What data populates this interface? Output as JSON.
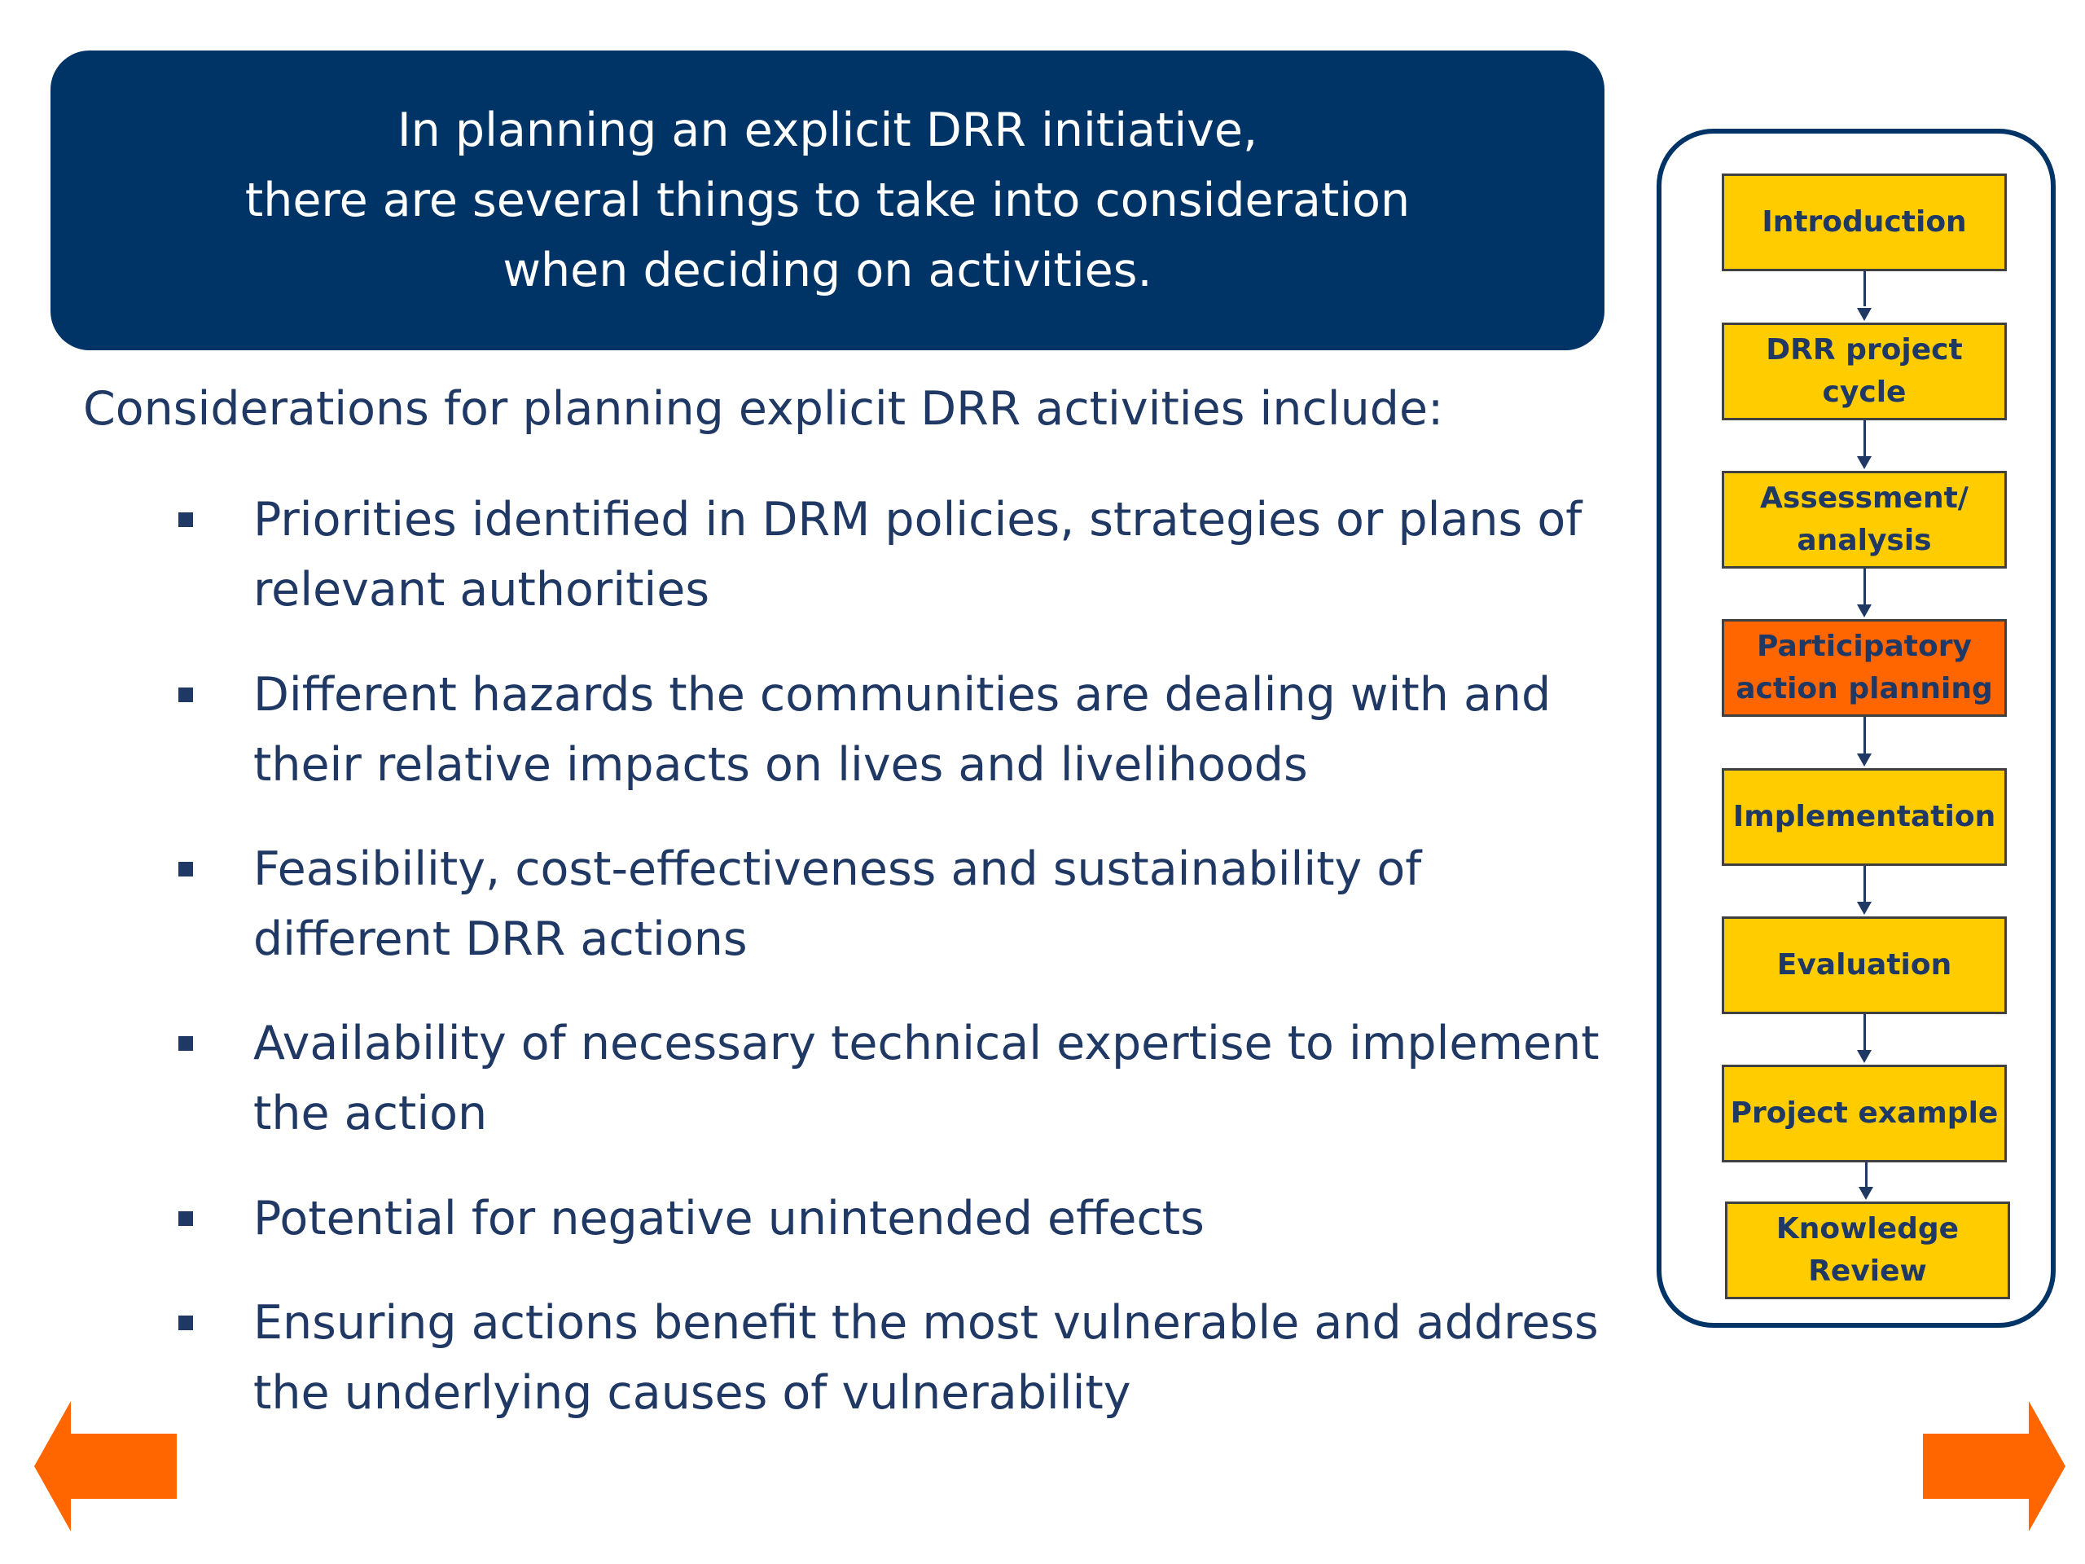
{
  "banner": {
    "lines": [
      "In planning an explicit DRR initiative,",
      "there are several things to take into consideration",
      "when deciding on activities."
    ],
    "color": "#003366"
  },
  "intro": "Considerations for planning explicit DRR activities include:",
  "bullets": [
    "Priorities identified in DRM policies, strategies or plans of relevant authorities",
    "Different hazards the communities are dealing with and their relative impacts on lives and livelihoods",
    "Feasibility, cost-effectiveness and sustainability of different DRR actions",
    "Availability of necessary technical expertise to implement the action",
    "Potential for negative unintended effects",
    "Ensuring actions benefit the most vulnerable and address the underlying causes of vulnerability"
  ],
  "flow": {
    "steps": [
      {
        "lines": [
          "Introduction"
        ],
        "active": false
      },
      {
        "lines": [
          "DRR project",
          "cycle"
        ],
        "active": false
      },
      {
        "lines": [
          "Assessment/",
          "analysis"
        ],
        "active": false
      },
      {
        "lines": [
          "Participatory",
          "action planning"
        ],
        "active": true
      },
      {
        "lines": [
          "Implementation"
        ],
        "active": false
      },
      {
        "lines": [
          "Evaluation"
        ],
        "active": false
      },
      {
        "lines": [
          "Project example"
        ],
        "active": false
      },
      {
        "lines": [
          "Knowledge",
          "Review"
        ],
        "active": false
      }
    ],
    "colors": {
      "step": "#ffcc00",
      "active": "#ff6600",
      "frame": "#003366"
    }
  },
  "nav": {
    "prev_icon": "arrow-left-icon",
    "next_icon": "arrow-right-icon",
    "color": "#ff6600"
  }
}
